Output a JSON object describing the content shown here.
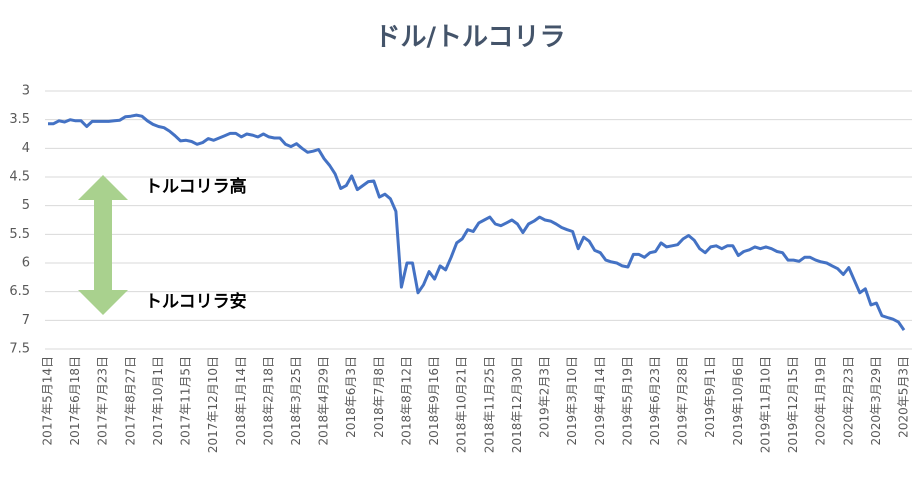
{
  "chart_data": {
    "type": "line",
    "title": "ドル/トルコリラ",
    "annotations": [
      "トルコリラ高",
      "トルコリラ安"
    ],
    "categories": [
      "2017年5月14日",
      null,
      null,
      null,
      null,
      "2017年6月18日",
      null,
      null,
      null,
      null,
      "2017年7月23日",
      null,
      null,
      null,
      null,
      "2017年8月27日",
      null,
      null,
      null,
      null,
      "2017年10月1日",
      null,
      null,
      null,
      null,
      "2017年11月5日",
      null,
      null,
      null,
      null,
      "2017年12月10日",
      null,
      null,
      null,
      null,
      "2018年1月14日",
      null,
      null,
      null,
      null,
      "2018年2月18日",
      null,
      null,
      null,
      null,
      "2018年3月25日",
      null,
      null,
      null,
      null,
      "2018年4月29日",
      null,
      null,
      null,
      null,
      "2018年6月3日",
      null,
      null,
      null,
      null,
      "2018年7月8日",
      null,
      null,
      null,
      null,
      "2018年8月12日",
      null,
      null,
      null,
      null,
      "2018年9月16日",
      null,
      null,
      null,
      null,
      "2018年10月21日",
      null,
      null,
      null,
      null,
      "2018年11月25日",
      null,
      null,
      null,
      null,
      "2018年12月30日",
      null,
      null,
      null,
      null,
      "2019年2月3日",
      null,
      null,
      null,
      null,
      "2019年3月10日",
      null,
      null,
      null,
      null,
      "2019年4月14日",
      null,
      null,
      null,
      null,
      "2019年5月19日",
      null,
      null,
      null,
      null,
      "2019年6月23日",
      null,
      null,
      null,
      null,
      "2019年7月28日",
      null,
      null,
      null,
      null,
      "2019年9月1日",
      null,
      null,
      null,
      null,
      "2019年10月6日",
      null,
      null,
      null,
      null,
      "2019年11月10日",
      null,
      null,
      null,
      null,
      "2019年12月15日",
      null,
      null,
      null,
      null,
      "2020年1月19日",
      null,
      null,
      null,
      null,
      "2020年2月23日",
      null,
      null,
      null,
      null,
      "2020年3月29日",
      null,
      null,
      null,
      null,
      "2020年5月3日"
    ],
    "values": [
      3.57,
      3.57,
      3.52,
      3.54,
      3.5,
      3.52,
      3.52,
      3.62,
      3.53,
      3.53,
      3.53,
      3.53,
      3.52,
      3.51,
      3.45,
      3.44,
      3.42,
      3.44,
      3.52,
      3.58,
      3.62,
      3.64,
      3.7,
      3.78,
      3.87,
      3.86,
      3.88,
      3.93,
      3.9,
      3.83,
      3.86,
      3.82,
      3.78,
      3.74,
      3.74,
      3.8,
      3.75,
      3.77,
      3.8,
      3.75,
      3.8,
      3.82,
      3.82,
      3.93,
      3.97,
      3.92,
      4.0,
      4.07,
      4.05,
      4.02,
      4.18,
      4.3,
      4.45,
      4.7,
      4.65,
      4.48,
      4.72,
      4.65,
      4.58,
      4.57,
      4.85,
      4.8,
      4.88,
      5.1,
      6.42,
      6.0,
      6.0,
      6.52,
      6.38,
      6.15,
      6.28,
      6.05,
      6.12,
      5.9,
      5.65,
      5.58,
      5.42,
      5.45,
      5.3,
      5.25,
      5.2,
      5.32,
      5.35,
      5.3,
      5.25,
      5.32,
      5.47,
      5.32,
      5.27,
      5.2,
      5.25,
      5.27,
      5.32,
      5.38,
      5.42,
      5.45,
      5.75,
      5.55,
      5.62,
      5.78,
      5.82,
      5.95,
      5.98,
      6.0,
      6.05,
      6.07,
      5.85,
      5.85,
      5.9,
      5.82,
      5.8,
      5.65,
      5.72,
      5.7,
      5.68,
      5.58,
      5.52,
      5.6,
      5.75,
      5.82,
      5.72,
      5.7,
      5.75,
      5.7,
      5.7,
      5.87,
      5.8,
      5.77,
      5.72,
      5.75,
      5.72,
      5.75,
      5.8,
      5.82,
      5.95,
      5.95,
      5.97,
      5.9,
      5.9,
      5.95,
      5.98,
      6.0,
      6.05,
      6.1,
      6.2,
      6.08,
      6.3,
      6.52,
      6.45,
      6.73,
      6.7,
      6.92,
      6.95,
      6.98,
      7.03,
      7.17
    ],
    "color": "#4472c4",
    "ylim": [
      3,
      7.5
    ],
    "yticks": [
      3,
      3.5,
      4,
      4.5,
      5,
      5.5,
      6,
      6.5,
      7,
      7.5
    ],
    "y_inverted": true,
    "grid": true
  }
}
